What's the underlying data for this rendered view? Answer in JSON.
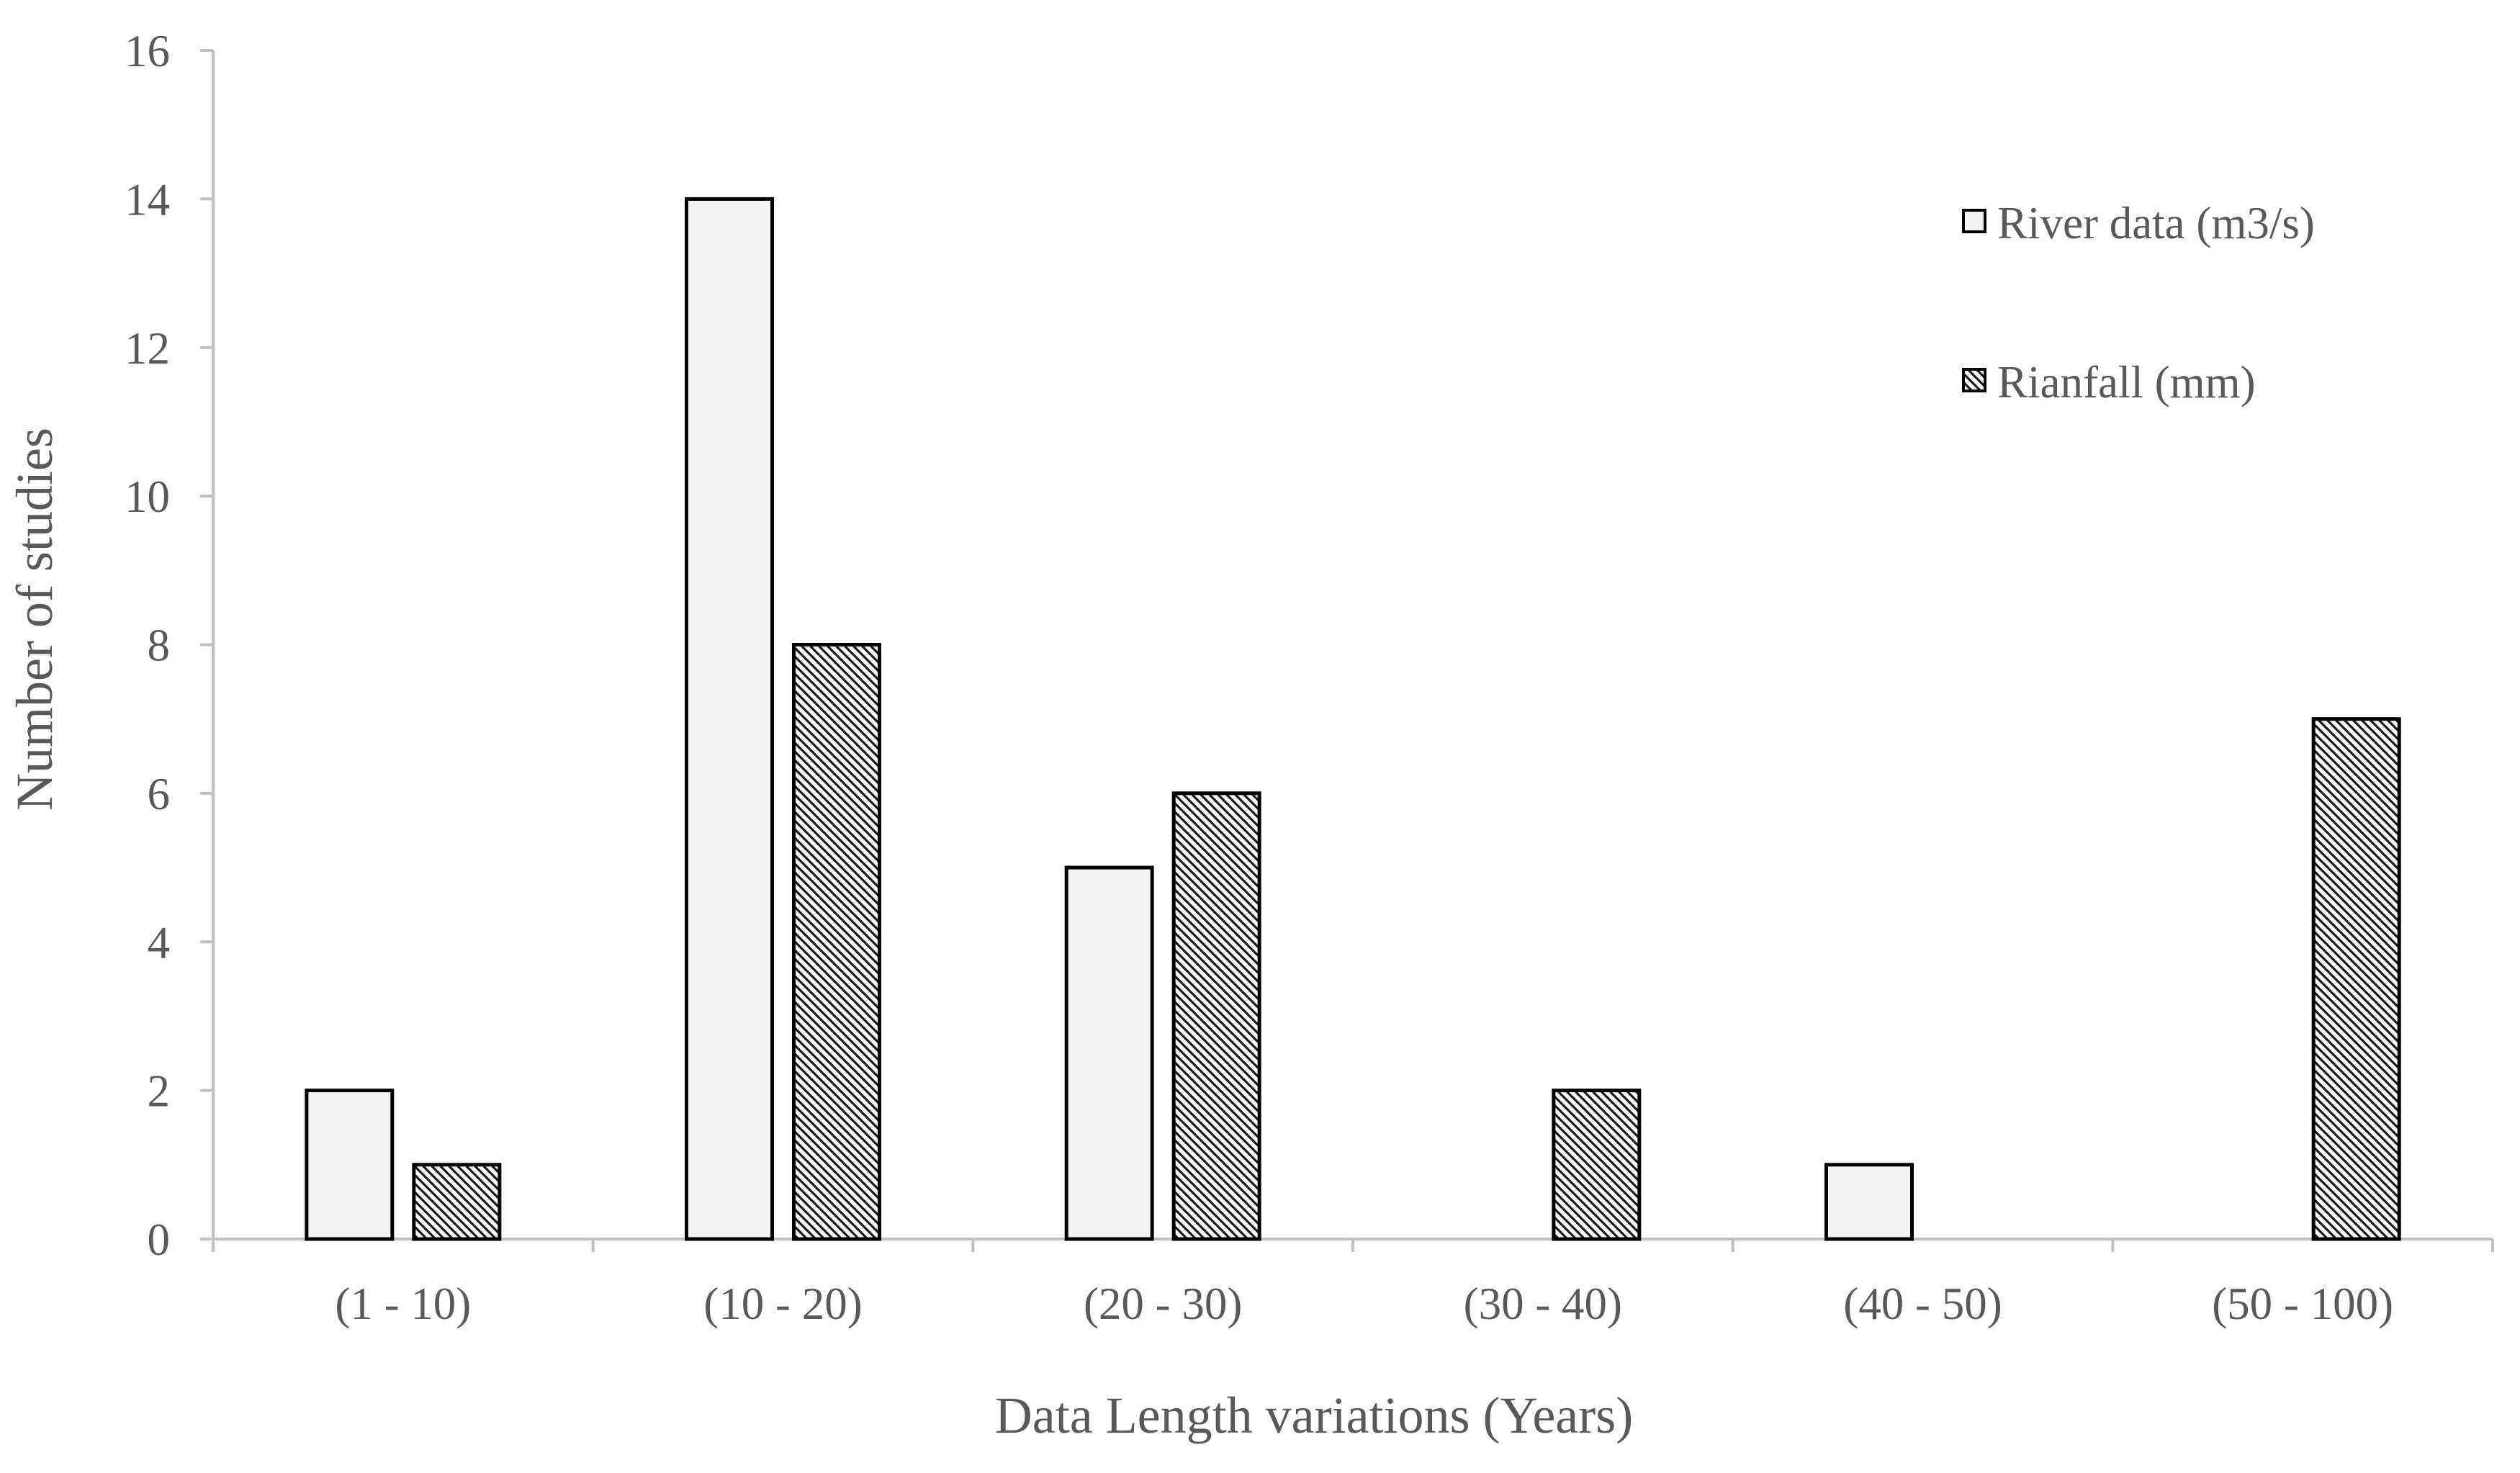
{
  "chart_data": {
    "type": "bar",
    "categories": [
      "(1 - 10)",
      "(10 - 20)",
      "(20 - 30)",
      "(30 - 40)",
      "(40 - 50)",
      "(50 - 100)"
    ],
    "series": [
      {
        "name": "River data (m3/s)",
        "values": [
          2,
          14,
          5,
          0,
          1,
          0
        ],
        "fill": "#f2f2f2",
        "pattern": "solid"
      },
      {
        "name": "Rianfall (mm)",
        "values": [
          1,
          8,
          6,
          2,
          0,
          7
        ],
        "fill": "#ffffff",
        "pattern": "diagonal-hatch"
      }
    ],
    "xlabel": "Data Length variations (Years)",
    "ylabel": "Number of studies",
    "ylim": [
      0,
      16
    ],
    "yticks": [
      "0",
      "2",
      "4",
      "6",
      "8",
      "10",
      "12",
      "14",
      "16"
    ],
    "grid": false,
    "legend_position": "top-right",
    "colors": {
      "bar_stroke": "#000000",
      "axis": "#bfbfbf",
      "text": "#595959"
    }
  }
}
